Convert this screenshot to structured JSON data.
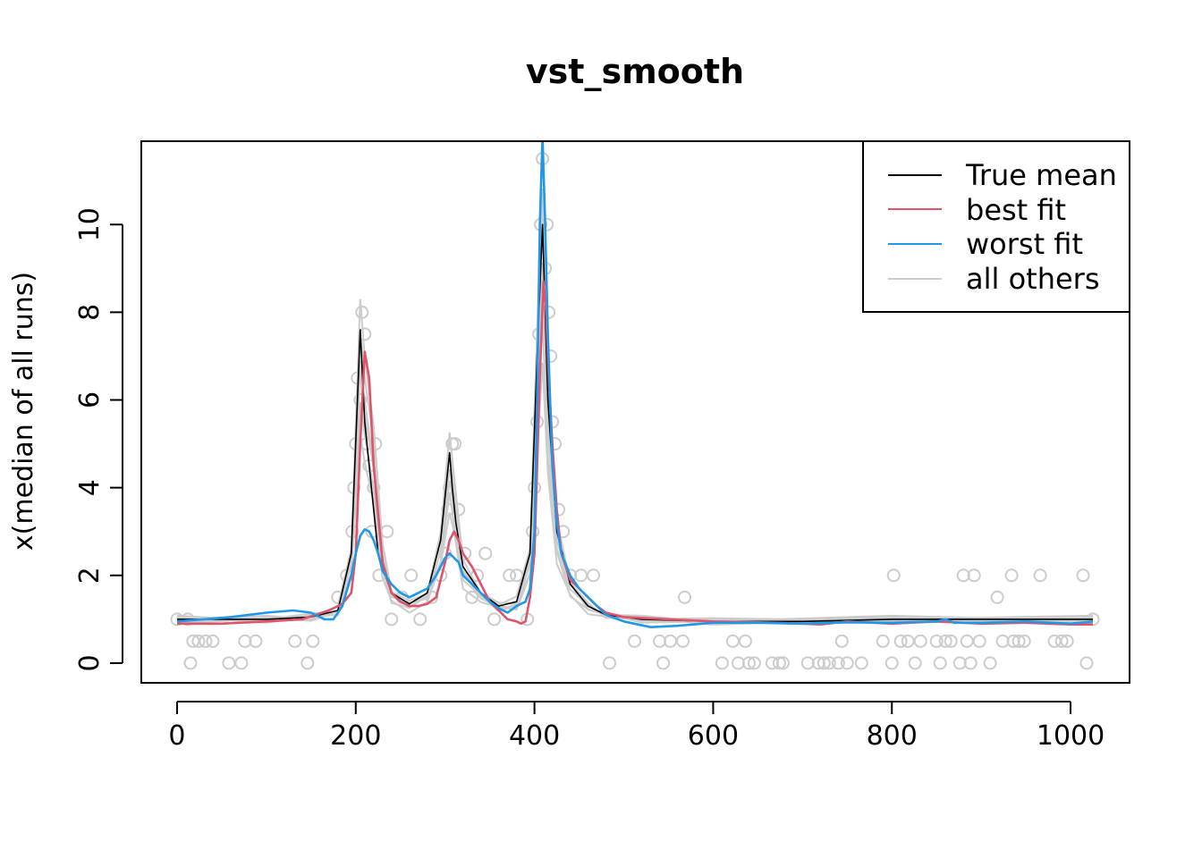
{
  "chart_data": {
    "type": "line",
    "title": "vst_smooth",
    "xlabel": "",
    "ylabel": "x(median of all runs)",
    "xlim": [
      -40,
      1066
    ],
    "ylim": [
      -0.45,
      11.9
    ],
    "xticks": [
      0,
      200,
      400,
      600,
      800,
      1000
    ],
    "yticks": [
      0,
      2,
      4,
      6,
      8,
      10
    ],
    "legend_position": "top-right",
    "legend": [
      {
        "label": "True mean",
        "color": "#000000"
      },
      {
        "label": "best fit",
        "color": "#DF536B"
      },
      {
        "label": "worst fit",
        "color": "#2297E6"
      },
      {
        "label": "all others",
        "color": "#CCCCCC"
      }
    ],
    "series": [
      {
        "name": "True mean",
        "color": "#000000",
        "x": [
          0,
          100,
          150,
          180,
          195,
          205,
          210,
          225,
          240,
          260,
          280,
          295,
          305,
          308,
          312,
          320,
          340,
          360,
          380,
          395,
          403,
          409,
          415,
          425,
          440,
          460,
          480,
          520,
          600,
          700,
          800,
          900,
          1025
        ],
        "y": [
          1.0,
          1.0,
          1.05,
          1.2,
          2.5,
          7.6,
          5.5,
          2.5,
          1.6,
          1.35,
          1.6,
          2.8,
          4.8,
          4.0,
          3.2,
          2.2,
          1.6,
          1.3,
          1.4,
          2.5,
          7.0,
          10.0,
          6.0,
          3.0,
          1.8,
          1.3,
          1.1,
          1.0,
          0.95,
          0.95,
          1.0,
          1.0,
          1.0
        ]
      },
      {
        "name": "best fit",
        "color": "#DF536B",
        "x": [
          0,
          50,
          100,
          140,
          170,
          185,
          195,
          200,
          205,
          210,
          215,
          220,
          230,
          240,
          250,
          260,
          270,
          280,
          290,
          300,
          305,
          310,
          315,
          320,
          330,
          340,
          350,
          360,
          370,
          380,
          385,
          390,
          395,
          400,
          403,
          406,
          410,
          413,
          416,
          420,
          425,
          430,
          440,
          450,
          460,
          470,
          480,
          500,
          550,
          600,
          650,
          700,
          720,
          750,
          800,
          850,
          900,
          950,
          1000,
          1025
        ],
        "y": [
          0.9,
          0.9,
          0.95,
          1.0,
          1.2,
          1.35,
          1.6,
          2.5,
          5.0,
          7.1,
          6.5,
          4.5,
          2.3,
          1.6,
          1.4,
          1.3,
          1.3,
          1.35,
          1.5,
          2.3,
          2.8,
          3.0,
          2.8,
          2.5,
          2.2,
          1.8,
          1.4,
          1.2,
          1.0,
          0.95,
          0.9,
          0.95,
          1.5,
          2.5,
          4.5,
          6.5,
          8.7,
          8.0,
          6.5,
          5.0,
          3.5,
          2.5,
          1.9,
          1.7,
          1.5,
          1.3,
          1.15,
          1.05,
          1.0,
          0.95,
          0.93,
          0.9,
          0.88,
          0.95,
          0.9,
          0.95,
          0.9,
          0.92,
          0.88,
          0.88
        ]
      },
      {
        "name": "worst fit",
        "color": "#2297E6",
        "x": [
          0,
          30,
          60,
          100,
          130,
          150,
          165,
          175,
          185,
          195,
          200,
          205,
          210,
          215,
          220,
          225,
          230,
          240,
          250,
          260,
          270,
          280,
          290,
          300,
          305,
          310,
          315,
          320,
          330,
          340,
          350,
          360,
          370,
          380,
          390,
          395,
          400,
          403,
          406,
          409,
          412,
          415,
          420,
          425,
          430,
          440,
          450,
          460,
          470,
          480,
          500,
          530,
          560,
          600,
          650,
          700,
          750,
          800,
          850,
          860,
          870,
          900,
          950,
          1000,
          1025
        ],
        "y": [
          0.95,
          1.0,
          1.05,
          1.15,
          1.2,
          1.15,
          1.0,
          1.0,
          1.3,
          2.0,
          2.5,
          2.9,
          3.05,
          3.0,
          2.8,
          2.5,
          2.1,
          1.8,
          1.6,
          1.5,
          1.6,
          1.7,
          2.0,
          2.4,
          2.5,
          2.4,
          2.3,
          2.0,
          1.8,
          1.6,
          1.4,
          1.25,
          1.15,
          1.3,
          1.4,
          1.7,
          3.0,
          6.0,
          10.0,
          12.0,
          10.0,
          7.5,
          4.5,
          3.2,
          2.5,
          2.0,
          1.7,
          1.5,
          1.3,
          1.1,
          0.95,
          0.82,
          0.85,
          0.92,
          0.92,
          0.9,
          0.93,
          0.92,
          0.95,
          1.0,
          0.92,
          0.92,
          0.95,
          0.9,
          0.95
        ]
      }
    ],
    "others_band": {
      "name": "all others",
      "color": "#CCCCCC",
      "x": [
        0,
        100,
        150,
        180,
        195,
        205,
        210,
        220,
        230,
        240,
        260,
        280,
        295,
        305,
        310,
        320,
        340,
        360,
        380,
        395,
        403,
        409,
        415,
        425,
        440,
        460,
        480,
        520,
        600,
        800,
        1025
      ],
      "y": [
        1.0,
        1.0,
        1.05,
        1.2,
        2.5,
        7.6,
        6.5,
        5.0,
        2.5,
        1.6,
        1.35,
        1.6,
        2.8,
        4.8,
        4.0,
        2.2,
        1.6,
        1.3,
        1.4,
        2.5,
        7.0,
        10.0,
        6.0,
        3.0,
        1.8,
        1.3,
        1.1,
        1.0,
        0.95,
        1.0,
        1.0
      ],
      "spreads": [
        1.0,
        1.1,
        0.9,
        0.85,
        0.75,
        0.65
      ]
    },
    "others_points": [
      {
        "x": 0,
        "y": 1
      },
      {
        "x": 12,
        "y": 1
      },
      {
        "x": 15,
        "y": 0
      },
      {
        "x": 18,
        "y": 0.5
      },
      {
        "x": 24,
        "y": 0.5
      },
      {
        "x": 32,
        "y": 0.5
      },
      {
        "x": 40,
        "y": 0.5
      },
      {
        "x": 58,
        "y": 0
      },
      {
        "x": 72,
        "y": 0
      },
      {
        "x": 76,
        "y": 0.5
      },
      {
        "x": 88,
        "y": 0.5
      },
      {
        "x": 132,
        "y": 0.5
      },
      {
        "x": 146,
        "y": 0
      },
      {
        "x": 152,
        "y": 0.5
      },
      {
        "x": 180,
        "y": 1.5
      },
      {
        "x": 190,
        "y": 2
      },
      {
        "x": 196,
        "y": 3
      },
      {
        "x": 198,
        "y": 4
      },
      {
        "x": 200,
        "y": 5
      },
      {
        "x": 202,
        "y": 6.5
      },
      {
        "x": 205,
        "y": 6
      },
      {
        "x": 207,
        "y": 8
      },
      {
        "x": 210,
        "y": 7.5
      },
      {
        "x": 212,
        "y": 5
      },
      {
        "x": 215,
        "y": 4.5
      },
      {
        "x": 218,
        "y": 3
      },
      {
        "x": 220,
        "y": 4
      },
      {
        "x": 222,
        "y": 5
      },
      {
        "x": 226,
        "y": 2
      },
      {
        "x": 235,
        "y": 3
      },
      {
        "x": 240,
        "y": 1
      },
      {
        "x": 252,
        "y": 1.5
      },
      {
        "x": 262,
        "y": 2
      },
      {
        "x": 272,
        "y": 1
      },
      {
        "x": 285,
        "y": 1.5
      },
      {
        "x": 295,
        "y": 2
      },
      {
        "x": 300,
        "y": 2.5
      },
      {
        "x": 303,
        "y": 3.5
      },
      {
        "x": 305,
        "y": 4
      },
      {
        "x": 308,
        "y": 5
      },
      {
        "x": 311,
        "y": 5
      },
      {
        "x": 315,
        "y": 3.5
      },
      {
        "x": 322,
        "y": 2.5
      },
      {
        "x": 330,
        "y": 1.5
      },
      {
        "x": 336,
        "y": 2
      },
      {
        "x": 345,
        "y": 2.5
      },
      {
        "x": 355,
        "y": 1
      },
      {
        "x": 372,
        "y": 2
      },
      {
        "x": 380,
        "y": 2
      },
      {
        "x": 392,
        "y": 1
      },
      {
        "x": 398,
        "y": 3
      },
      {
        "x": 400,
        "y": 4
      },
      {
        "x": 403,
        "y": 5.5
      },
      {
        "x": 405,
        "y": 7.5
      },
      {
        "x": 407,
        "y": 10
      },
      {
        "x": 409,
        "y": 11.5
      },
      {
        "x": 412,
        "y": 9
      },
      {
        "x": 414,
        "y": 10
      },
      {
        "x": 416,
        "y": 8
      },
      {
        "x": 418,
        "y": 7
      },
      {
        "x": 420,
        "y": 5.5
      },
      {
        "x": 423,
        "y": 5
      },
      {
        "x": 427,
        "y": 3.5
      },
      {
        "x": 432,
        "y": 3
      },
      {
        "x": 440,
        "y": 2
      },
      {
        "x": 452,
        "y": 2
      },
      {
        "x": 466,
        "y": 2
      },
      {
        "x": 484,
        "y": 0
      },
      {
        "x": 512,
        "y": 0.5
      },
      {
        "x": 540,
        "y": 0.5
      },
      {
        "x": 544,
        "y": 0
      },
      {
        "x": 552,
        "y": 0.5
      },
      {
        "x": 566,
        "y": 0.5
      },
      {
        "x": 568,
        "y": 1.5
      },
      {
        "x": 610,
        "y": 0
      },
      {
        "x": 622,
        "y": 0.5
      },
      {
        "x": 628,
        "y": 0
      },
      {
        "x": 636,
        "y": 0.5
      },
      {
        "x": 640,
        "y": 0
      },
      {
        "x": 646,
        "y": 0
      },
      {
        "x": 666,
        "y": 0
      },
      {
        "x": 674,
        "y": 0
      },
      {
        "x": 678,
        "y": 0
      },
      {
        "x": 706,
        "y": 0
      },
      {
        "x": 718,
        "y": 0
      },
      {
        "x": 724,
        "y": 0
      },
      {
        "x": 730,
        "y": 0
      },
      {
        "x": 740,
        "y": 0
      },
      {
        "x": 744,
        "y": 0.5
      },
      {
        "x": 750,
        "y": 0
      },
      {
        "x": 766,
        "y": 0
      },
      {
        "x": 790,
        "y": 0.5
      },
      {
        "x": 800,
        "y": 0
      },
      {
        "x": 802,
        "y": 2
      },
      {
        "x": 810,
        "y": 0.5
      },
      {
        "x": 818,
        "y": 0.5
      },
      {
        "x": 826,
        "y": 0
      },
      {
        "x": 832,
        "y": 0.5
      },
      {
        "x": 850,
        "y": 0.5
      },
      {
        "x": 854,
        "y": 0
      },
      {
        "x": 860,
        "y": 0.5
      },
      {
        "x": 866,
        "y": 0.5
      },
      {
        "x": 876,
        "y": 0
      },
      {
        "x": 880,
        "y": 2
      },
      {
        "x": 884,
        "y": 0.5
      },
      {
        "x": 888,
        "y": 0
      },
      {
        "x": 892,
        "y": 2
      },
      {
        "x": 898,
        "y": 0.5
      },
      {
        "x": 910,
        "y": 0
      },
      {
        "x": 918,
        "y": 1.5
      },
      {
        "x": 924,
        "y": 0.5
      },
      {
        "x": 934,
        "y": 2
      },
      {
        "x": 936,
        "y": 0.5
      },
      {
        "x": 942,
        "y": 0.5
      },
      {
        "x": 948,
        "y": 0.5
      },
      {
        "x": 966,
        "y": 2
      },
      {
        "x": 982,
        "y": 0.5
      },
      {
        "x": 990,
        "y": 0.5
      },
      {
        "x": 996,
        "y": 0.5
      },
      {
        "x": 1014,
        "y": 2
      },
      {
        "x": 1018,
        "y": 0
      },
      {
        "x": 1025,
        "y": 1
      }
    ]
  }
}
